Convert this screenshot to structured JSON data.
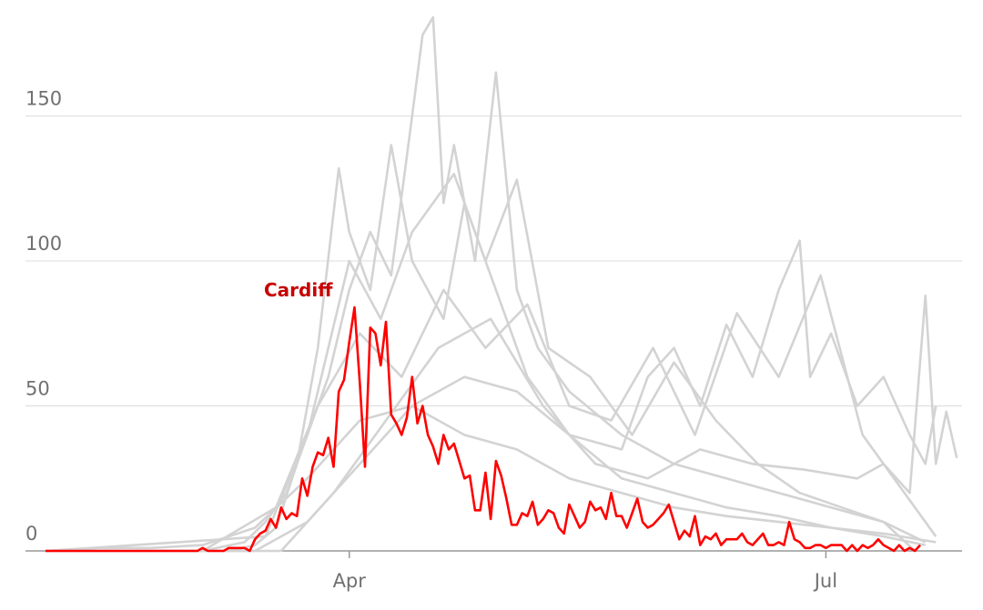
{
  "chart_data": {
    "type": "line",
    "annotation": "Cardiff",
    "xlim": [
      0,
      175
    ],
    "xticks": [
      {
        "value": 58,
        "label": "Apr"
      },
      {
        "value": 149,
        "label": "Jul"
      }
    ],
    "ylim": [
      0,
      190
    ],
    "yticks": [
      0,
      50,
      100,
      150
    ],
    "grid": true,
    "series": [
      {
        "color": "#d3d3d3",
        "x": [
          0,
          30,
          38,
          42,
          46,
          50,
          54,
          58,
          62,
          66,
          70,
          72,
          74,
          76,
          78,
          82,
          86,
          90,
          94,
          100,
          110,
          120,
          130,
          140,
          150,
          160,
          168
        ],
        "values": [
          0,
          0,
          3,
          10,
          20,
          40,
          60,
          90,
          110,
          95,
          150,
          178,
          184,
          120,
          140,
          100,
          165,
          90,
          70,
          55,
          40,
          30,
          25,
          20,
          15,
          10,
          3
        ]
      },
      {
        "color": "#d3d3d3",
        "x": [
          0,
          35,
          40,
          44,
          48,
          52,
          56,
          58,
          62,
          66,
          70,
          76,
          80,
          86,
          92,
          100,
          110,
          120,
          130,
          140,
          150,
          160,
          168
        ],
        "values": [
          0,
          0,
          2,
          8,
          30,
          70,
          132,
          110,
          90,
          140,
          100,
          80,
          120,
          90,
          60,
          40,
          25,
          20,
          15,
          12,
          8,
          5,
          2
        ]
      },
      {
        "color": "#d3d3d3",
        "x": [
          0,
          40,
          50,
          60,
          70,
          80,
          90,
          100,
          110,
          115,
          120,
          125,
          130,
          135,
          140,
          144,
          146,
          150,
          155,
          160,
          165,
          168,
          170
        ],
        "values": [
          0,
          0,
          10,
          30,
          50,
          60,
          55,
          40,
          35,
          60,
          70,
          50,
          78,
          60,
          90,
          107,
          60,
          75,
          50,
          60,
          40,
          30,
          50
        ]
      },
      {
        "color": "#d3d3d3",
        "x": [
          0,
          45,
          55,
          65,
          75,
          85,
          95,
          105,
          115,
          125,
          135,
          145,
          155,
          160,
          165,
          168,
          170,
          172,
          174
        ],
        "values": [
          0,
          0,
          20,
          45,
          70,
          80,
          50,
          30,
          25,
          35,
          30,
          28,
          25,
          30,
          20,
          88,
          30,
          48,
          32
        ]
      },
      {
        "color": "#d3d3d3",
        "x": [
          0,
          42,
          50,
          58,
          64,
          70,
          78,
          84,
          90,
          96,
          104,
          112,
          120,
          128,
          136,
          144,
          152,
          160,
          166
        ],
        "values": [
          0,
          5,
          40,
          100,
          80,
          110,
          130,
          100,
          128,
          70,
          60,
          40,
          65,
          45,
          30,
          20,
          15,
          10,
          0
        ]
      },
      {
        "color": "#d3d3d3",
        "x": [
          0,
          30,
          44,
          52,
          60,
          68,
          76,
          84,
          92,
          100,
          108,
          116,
          124,
          132,
          140,
          148,
          156,
          164,
          170
        ],
        "values": [
          0,
          0,
          15,
          50,
          75,
          60,
          90,
          70,
          85,
          50,
          45,
          70,
          40,
          82,
          60,
          95,
          40,
          20,
          5
        ]
      },
      {
        "color": "#d3d3d3",
        "x": [
          0,
          10,
          20,
          30,
          40,
          50,
          60,
          70,
          80,
          90,
          100,
          110,
          120,
          130,
          140,
          150,
          160,
          170
        ],
        "values": [
          0,
          1,
          1,
          2,
          8,
          25,
          45,
          50,
          40,
          35,
          25,
          20,
          15,
          12,
          10,
          8,
          6,
          3
        ]
      },
      {
        "name": "Cardiff",
        "color": "#ff0000",
        "x": [
          0,
          1,
          2,
          3,
          4,
          5,
          6,
          7,
          8,
          9,
          10,
          11,
          12,
          13,
          14,
          15,
          16,
          17,
          18,
          19,
          20,
          21,
          22,
          23,
          24,
          25,
          26,
          27,
          28,
          29,
          30,
          31,
          32,
          33,
          34,
          35,
          36,
          37,
          38,
          39,
          40,
          41,
          42,
          43,
          44,
          45,
          46,
          47,
          48,
          49,
          50,
          51,
          52,
          53,
          54,
          55,
          56,
          57,
          58,
          59,
          60,
          61,
          62,
          63,
          64,
          65,
          66,
          67,
          68,
          69,
          70,
          71,
          72,
          73,
          74,
          75,
          76,
          77,
          78,
          79,
          80,
          81,
          82,
          83,
          84,
          85,
          86,
          87,
          88,
          89,
          90,
          91,
          92,
          93,
          94,
          95,
          96,
          97,
          98,
          99,
          100,
          101,
          102,
          103,
          104,
          105,
          106,
          107,
          108,
          109,
          110,
          111,
          112,
          113,
          114,
          115,
          116,
          117,
          118,
          119,
          120,
          121,
          122,
          123,
          124,
          125,
          126,
          127,
          128,
          129,
          130,
          131,
          132,
          133,
          134,
          135,
          136,
          137,
          138,
          139,
          140,
          141,
          142,
          143,
          144,
          145,
          146,
          147,
          148,
          149,
          150,
          151,
          152,
          153,
          154,
          155,
          156,
          157,
          158,
          159,
          160,
          161,
          162,
          163,
          164,
          165,
          166,
          167
        ],
        "values": [
          0,
          0,
          0,
          0,
          0,
          0,
          0,
          0,
          0,
          0,
          0,
          0,
          0,
          0,
          0,
          0,
          0,
          0,
          0,
          0,
          0,
          0,
          0,
          0,
          0,
          0,
          0,
          0,
          0,
          0,
          1,
          0,
          0,
          0,
          0,
          1,
          1,
          1,
          1,
          0,
          4,
          6,
          7,
          11,
          8,
          15,
          11,
          13,
          12,
          25,
          19,
          29,
          34,
          33,
          39,
          29,
          55,
          59,
          72,
          84,
          58,
          29,
          77,
          75,
          64,
          79,
          47,
          44,
          40,
          46,
          60,
          44,
          50,
          40,
          36,
          30,
          40,
          35,
          37,
          31,
          25,
          26,
          14,
          14,
          27,
          11,
          31,
          26,
          18,
          9,
          9,
          13,
          12,
          17,
          9,
          11,
          14,
          13,
          8,
          6,
          16,
          12,
          8,
          10,
          17,
          14,
          15,
          11,
          20,
          12,
          12,
          8,
          13,
          18,
          10,
          8,
          9,
          11,
          13,
          16,
          10,
          4,
          7,
          5,
          12,
          2,
          5,
          4,
          6,
          2,
          4,
          4,
          4,
          6,
          3,
          2,
          4,
          6,
          2,
          2,
          3,
          2,
          10,
          4,
          3,
          1,
          1,
          2,
          2,
          1,
          2,
          2,
          2,
          0,
          2,
          0,
          2,
          1,
          2,
          4,
          2,
          1,
          0,
          2,
          0,
          1,
          0,
          2
        ]
      }
    ]
  }
}
